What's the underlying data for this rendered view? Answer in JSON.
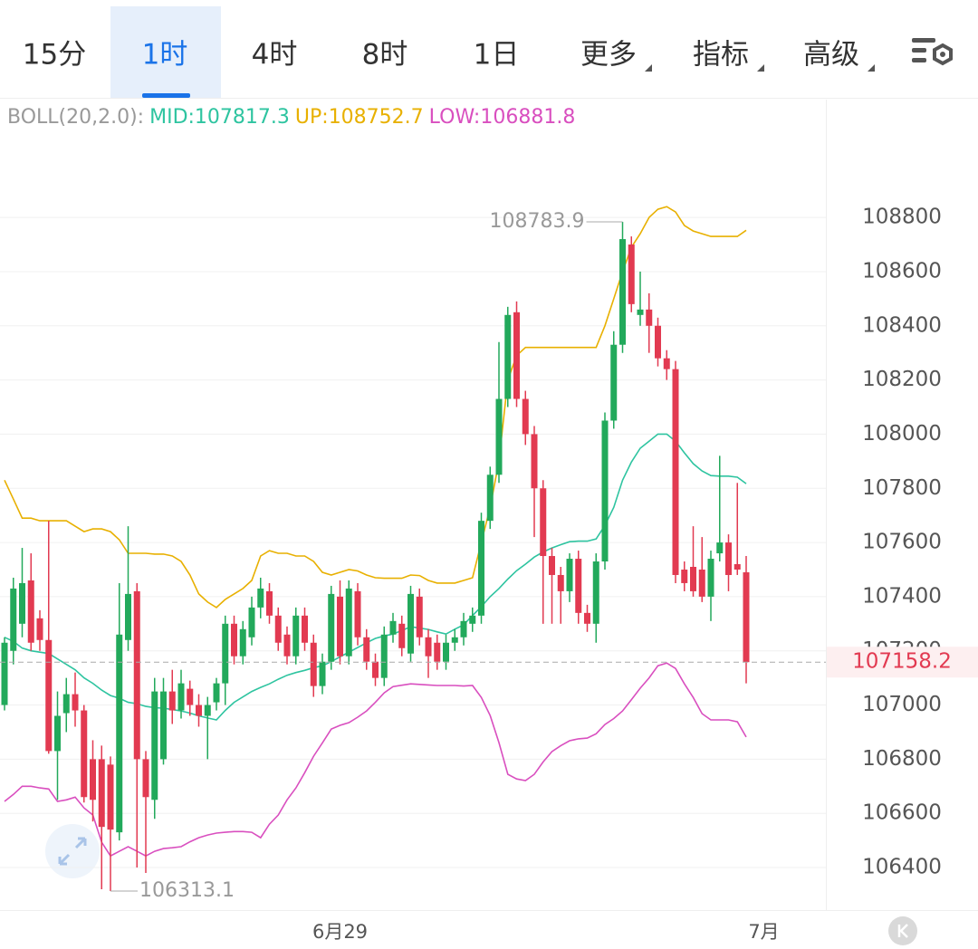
{
  "toolbar": {
    "tabs": [
      "15分",
      "1时",
      "4时",
      "8时",
      "1日"
    ],
    "active": 1,
    "menus": [
      "更多",
      "指标",
      "高级"
    ]
  },
  "chart_data": {
    "type": "candlestick",
    "indicator": "BOLL(20,2.0):",
    "categories": [
      null,
      null,
      null,
      null,
      null,
      null,
      null,
      null,
      null,
      null,
      null,
      null,
      null,
      null,
      null,
      null,
      null,
      null,
      null,
      null,
      null,
      null,
      null,
      null,
      null,
      null,
      null,
      null,
      null,
      null,
      null,
      null,
      null,
      null,
      null,
      null,
      null,
      null,
      "6月29",
      null,
      null,
      null,
      null,
      null,
      null,
      null,
      null,
      null,
      null,
      null,
      null,
      null,
      null,
      null,
      null,
      null,
      null,
      null,
      null,
      null,
      null,
      null,
      null,
      null,
      null,
      null,
      null,
      null,
      null,
      null,
      null,
      null,
      null,
      null,
      null,
      null,
      null,
      null,
      null,
      null,
      null,
      null,
      null,
      null,
      null,
      null,
      "7月"
    ],
    "open": [
      107000,
      107200,
      107300,
      107460,
      107320,
      107240,
      106830,
      106970,
      107040,
      106980,
      106800,
      106800,
      106780,
      106530,
      107240,
      107420,
      106800,
      106650,
      106800,
      107050,
      106980,
      107060,
      107000,
      106960,
      107010,
      107080,
      107300,
      107180,
      107250,
      107360,
      107420,
      107330,
      107260,
      107180,
      107330,
      107230,
      107070,
      107160,
      107400,
      107180,
      107420,
      107250,
      107160,
      107100,
      107260,
      107300,
      107190,
      107400,
      107250,
      107230,
      107160,
      107230,
      107250,
      107300,
      107330,
      107680,
      107850,
      108130,
      108450,
      108130,
      108000,
      107800,
      107550,
      107480,
      107420,
      107540,
      107340,
      107300,
      107530,
      108050,
      108330,
      108700,
      108440,
      108460,
      108400,
      108280,
      108240,
      107500,
      107510,
      107500,
      107400,
      107560,
      107600,
      107520,
      107490,
      null,
      null
    ],
    "high": [
      107250,
      107470,
      107580,
      107560,
      107350,
      107680,
      107050,
      107100,
      107120,
      107000,
      106870,
      106850,
      106810,
      107450,
      107660,
      107450,
      106830,
      107100,
      107100,
      107130,
      107130,
      107090,
      107040,
      107030,
      107100,
      107330,
      107330,
      107310,
      107400,
      107470,
      107450,
      107360,
      107290,
      107360,
      107360,
      107260,
      107190,
      107440,
      107460,
      107460,
      107450,
      107280,
      107190,
      107290,
      107340,
      107330,
      107440,
      107430,
      107280,
      107260,
      107260,
      107280,
      107340,
      107360,
      107710,
      107880,
      108340,
      108470,
      108490,
      108160,
      108030,
      107830,
      107580,
      107510,
      107560,
      107570,
      107370,
      107560,
      108080,
      108380,
      108783.9,
      108730,
      108600,
      108520,
      108430,
      108310,
      108270,
      107530,
      107660,
      107620,
      107570,
      107920,
      107630,
      107820,
      107550,
      null,
      null
    ],
    "low": [
      106980,
      107150,
      107250,
      107200,
      107200,
      106820,
      106650,
      106900,
      106920,
      106640,
      106570,
      106320,
      106313.1,
      106500,
      107200,
      106400,
      106380,
      106580,
      106780,
      106930,
      106950,
      106960,
      106920,
      106800,
      106980,
      107000,
      107150,
      107150,
      107220,
      107320,
      107300,
      107200,
      107150,
      107150,
      107200,
      107030,
      107040,
      107130,
      107150,
      107150,
      107220,
      107130,
      107070,
      107070,
      107230,
      107180,
      107160,
      107220,
      107100,
      107130,
      107130,
      107200,
      107220,
      107270,
      107300,
      107650,
      107820,
      108100,
      108100,
      107960,
      107620,
      107300,
      107300,
      107300,
      107380,
      107300,
      107270,
      107230,
      107500,
      108020,
      108300,
      108450,
      108400,
      108300,
      108250,
      108200,
      107450,
      107420,
      107400,
      107380,
      107310,
      107530,
      107420,
      107480,
      107080,
      null,
      null
    ],
    "close": [
      107230,
      107430,
      107450,
      107230,
      107240,
      106830,
      106960,
      107040,
      106980,
      106660,
      106650,
      106550,
      106540,
      107260,
      107410,
      106800,
      106660,
      107050,
      107050,
      106980,
      107080,
      107000,
      106960,
      107000,
      107080,
      107300,
      107180,
      107280,
      107360,
      107430,
      107330,
      107230,
      107180,
      107330,
      107230,
      107070,
      107160,
      107410,
      107180,
      107430,
      107250,
      107160,
      107100,
      107260,
      107310,
      107210,
      107410,
      107250,
      107180,
      107160,
      107230,
      107250,
      107310,
      107330,
      107680,
      107850,
      108130,
      108440,
      108130,
      108000,
      107800,
      107550,
      107480,
      107420,
      107540,
      107340,
      107300,
      107530,
      108050,
      108330,
      108720,
      108480,
      108460,
      108400,
      108280,
      108240,
      107480,
      107450,
      107420,
      107400,
      107540,
      107600,
      107480,
      107500,
      107158.2,
      null,
      null
    ],
    "series": [
      {
        "name": "MID:",
        "color": "#2ec4a0",
        "values": [
          107250,
          107235,
          107210,
          107200,
          107195,
          107190,
          107170,
          107150,
          107130,
          107100,
          107080,
          107055,
          107035,
          107025,
          107010,
          107005,
          106995,
          106990,
          106988,
          106983,
          106978,
          106970,
          106960,
          106952,
          106945,
          106980,
          107010,
          107030,
          107050,
          107065,
          107078,
          107095,
          107110,
          107120,
          107128,
          107138,
          107145,
          107160,
          107178,
          107195,
          107212,
          107230,
          107246,
          107255,
          107262,
          107275,
          107289,
          107284,
          107279,
          107270,
          107262,
          107280,
          107296,
          107330,
          107363,
          107400,
          107430,
          107465,
          107496,
          107520,
          107546,
          107565,
          107580,
          107592,
          107603,
          107605,
          107605,
          107613,
          107663,
          107730,
          107830,
          107897,
          107948,
          107974,
          108000,
          108000,
          107974,
          107931,
          107891,
          107864,
          107847,
          107845,
          107845,
          107841,
          107817.3,
          null,
          null
        ]
      },
      {
        "name": "UP:",
        "color": "#e8b000",
        "values": [
          107830,
          107760,
          107690,
          107690,
          107680,
          107680,
          107680,
          107680,
          107660,
          107640,
          107650,
          107650,
          107640,
          107610,
          107560,
          107560,
          107560,
          107557,
          107557,
          107550,
          107530,
          107480,
          107410,
          107380,
          107360,
          107390,
          107410,
          107430,
          107460,
          107550,
          107570,
          107560,
          107560,
          107550,
          107550,
          107530,
          107490,
          107480,
          107490,
          107500,
          107495,
          107480,
          107470,
          107468,
          107468,
          107468,
          107480,
          107478,
          107460,
          107450,
          107450,
          107450,
          107460,
          107470,
          107600,
          107730,
          107900,
          108200,
          108290,
          108320,
          108320,
          108320,
          108320,
          108320,
          108320,
          108320,
          108320,
          108320,
          108400,
          108500,
          108600,
          108690,
          108740,
          108800,
          108830,
          108840,
          108820,
          108770,
          108750,
          108740,
          108730,
          108730,
          108730,
          108730,
          108752.7,
          null,
          null
        ]
      },
      {
        "name": "LOW:",
        "color": "#d94fbf",
        "values": [
          106644,
          106670,
          106700,
          106700,
          106694,
          106690,
          106644,
          106650,
          106660,
          106620,
          106594,
          106493,
          106443,
          106460,
          106477,
          106460,
          106443,
          106460,
          106470,
          106473,
          106477,
          106495,
          106510,
          106520,
          106527,
          106530,
          106533,
          106533,
          106530,
          106510,
          106560,
          106594,
          106650,
          106694,
          106750,
          106811,
          106860,
          106911,
          106925,
          106935,
          106955,
          106978,
          107010,
          107045,
          107068,
          107073,
          107078,
          107076,
          107074,
          107072,
          107072,
          107072,
          107070,
          107072,
          107028,
          106961,
          106861,
          106744,
          106727,
          106721,
          106744,
          106790,
          106828,
          106850,
          106868,
          106875,
          106878,
          106894,
          106928,
          106950,
          106978,
          107020,
          107062,
          107100,
          107145,
          107155,
          107135,
          107078,
          107028,
          106968,
          106945,
          106945,
          106945,
          106938,
          106881.8,
          null,
          null
        ]
      }
    ],
    "up_color": "#22a95b",
    "down_color": "#e23a51",
    "ylim": [
      106243,
      109235
    ],
    "yticks": [
      106400,
      106600,
      106800,
      107000,
      107200,
      107400,
      107600,
      107800,
      108000,
      108200,
      108400,
      108600,
      108800
    ],
    "grid": true
  }
}
